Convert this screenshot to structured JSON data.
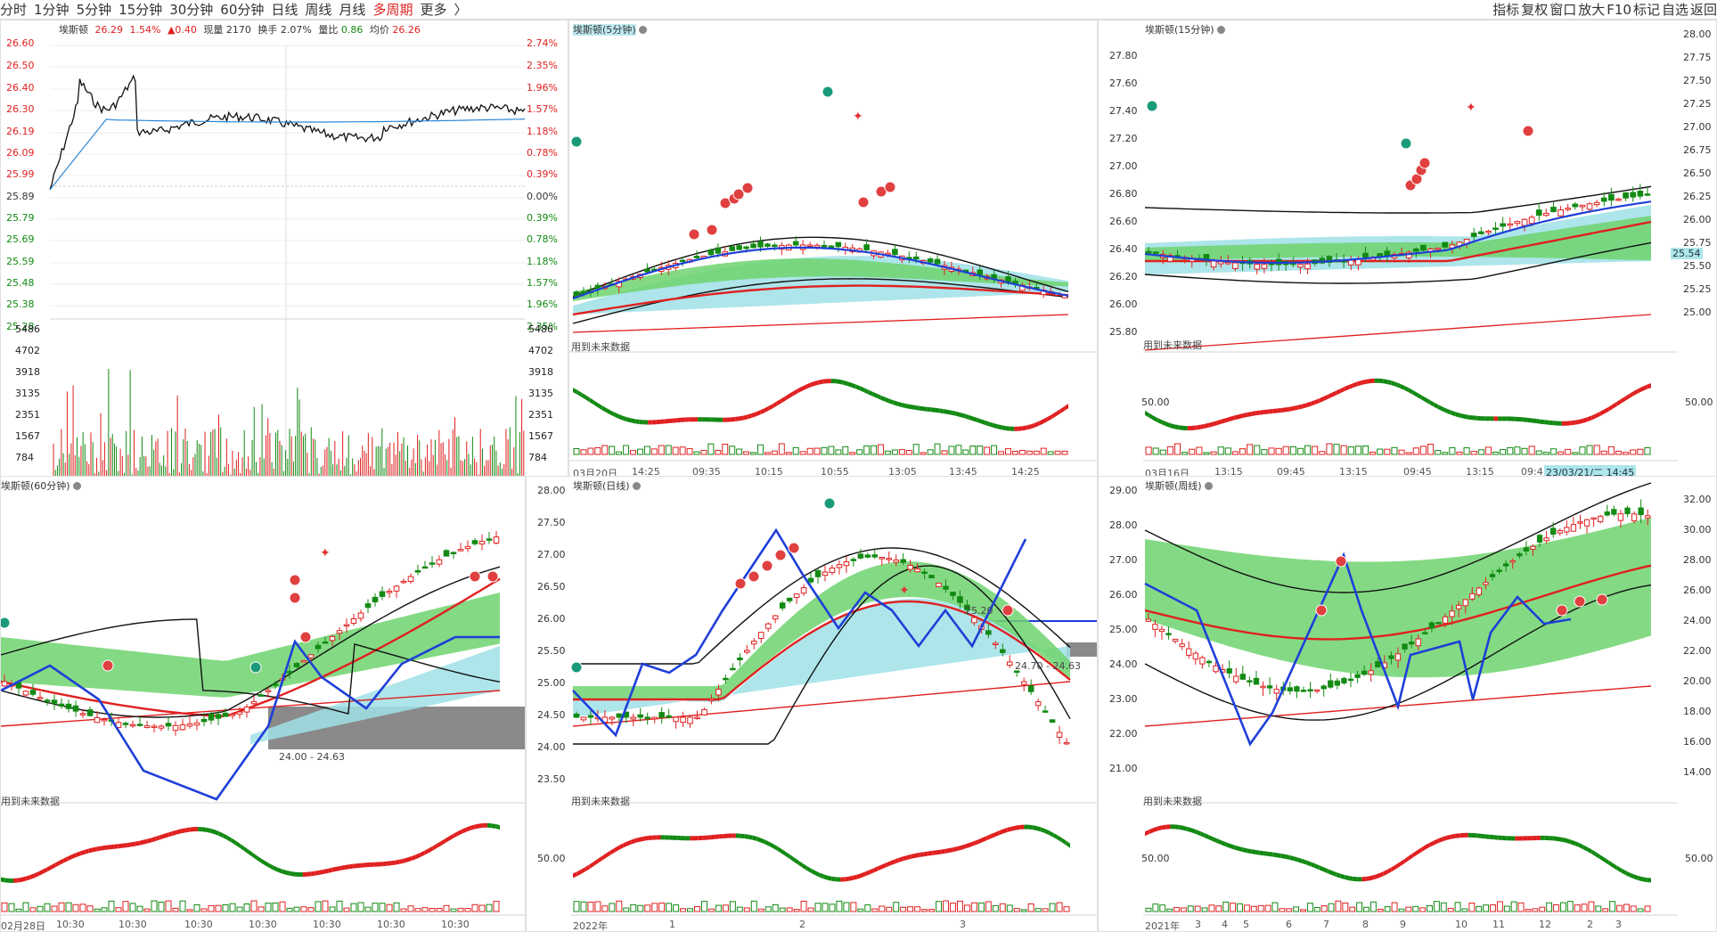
{
  "topbar": {
    "tabs": [
      "分时",
      "1分钟",
      "5分钟",
      "15分钟",
      "30分钟",
      "60分钟",
      "日线",
      "周线",
      "月线",
      "多周期",
      "更多"
    ],
    "active_tab": "多周期",
    "more_arrow": "〉",
    "tools": [
      "指标",
      "复权",
      "窗口",
      "放大",
      "F10",
      "标记",
      "自选",
      "返回"
    ]
  },
  "intraday": {
    "name": "埃斯顿",
    "price": "26.29",
    "change_pct": "1.54%",
    "change": "▲0.40",
    "volume_label": "现量",
    "volume": "2170",
    "turnover_label": "换手",
    "turnover": "2.07%",
    "ratio_label": "量比",
    "ratio": "0.86",
    "avg_label": "均价",
    "avg": "26.26",
    "price_ticks": [
      "26.60",
      "26.50",
      "26.40",
      "26.30",
      "26.19",
      "26.09",
      "25.99",
      "25.89",
      "25.79",
      "25.69",
      "25.59",
      "25.48",
      "25.38",
      "25.28"
    ],
    "pct_ticks": [
      "2.74%",
      "2.35%",
      "1.96%",
      "1.57%",
      "1.18%",
      "0.78%",
      "0.39%",
      "0.00%",
      "0.39%",
      "0.78%",
      "1.18%",
      "1.57%",
      "1.96%",
      "2.35%"
    ],
    "vol_ticks": [
      "5486",
      "4702",
      "3918",
      "3135",
      "2351",
      "1567",
      "784"
    ],
    "x_labels": []
  },
  "panels": {
    "m5": {
      "title": "埃斯顿(5分钟)",
      "note": "用到未来数据",
      "x_labels": [
        "03月20日",
        "14:25",
        "09:35",
        "10:15",
        "10:55",
        "13:05",
        "13:45",
        "14:25"
      ]
    },
    "m15": {
      "title": "埃斯顿(15分钟)",
      "note": "用到未来数据",
      "price_ticks": [
        "27.80",
        "27.60",
        "27.40",
        "27.20",
        "27.00",
        "26.80",
        "26.60",
        "26.40",
        "26.20",
        "26.00",
        "25.80"
      ],
      "right_ticks": [
        "28.00",
        "27.75",
        "27.50",
        "27.25",
        "27.00",
        "26.75",
        "26.50",
        "26.25",
        "26.00",
        "25.75",
        "25.50",
        "25.25",
        "25.00"
      ],
      "price_badge": "25.54",
      "osc_tick": "50.00",
      "right_osc_tick": "50.00",
      "x_labels": [
        "03月16日",
        "13:15",
        "09:45",
        "13:15",
        "09:45",
        "13:15",
        "09:4"
      ],
      "time_badge": "23/03/21/二 14:45"
    },
    "m60": {
      "title": "埃斯顿(60分钟)",
      "note": "用到未来数据",
      "range_label": "24.00 - 24.63",
      "x_labels": [
        "02月28日",
        "10:30",
        "10:30",
        "10:30",
        "10:30",
        "10:30",
        "10:30",
        "10:30"
      ]
    },
    "day": {
      "title": "埃斯顿(日线)",
      "note": "用到未来数据",
      "price_ticks": [
        "28.00",
        "27.50",
        "27.00",
        "26.50",
        "26.00",
        "25.50",
        "25.00",
        "24.50",
        "24.00",
        "23.50"
      ],
      "osc_tick": "50.00",
      "level_label": "25.20",
      "range_label": "24.70 - 24.63",
      "x_labels": [
        "2022年",
        "1",
        "2",
        "3"
      ]
    },
    "week": {
      "title": "埃斯顿(周线)",
      "note": "用到未来数据",
      "price_ticks": [
        "29.00",
        "28.00",
        "27.00",
        "26.00",
        "25.00",
        "24.00",
        "23.00",
        "22.00",
        "21.00"
      ],
      "right_ticks": [
        "32.00",
        "30.00",
        "28.00",
        "26.00",
        "24.00",
        "22.00",
        "20.00",
        "18.00",
        "16.00",
        "14.00"
      ],
      "osc_tick": "50.00",
      "right_osc_tick": "50.00",
      "x_labels": [
        "2021年",
        "3",
        "4",
        "5",
        "6",
        "7",
        "8",
        "9",
        "10",
        "11",
        "12",
        "2",
        "3"
      ]
    }
  },
  "colors": {
    "up": "#e02020",
    "down": "#138a13",
    "ma_blue": "#1f3fd8",
    "band_cyan": "#9fe0e6",
    "band_green": "#6fd36f",
    "price_line": "#111111",
    "avg_line": "#2a87d8"
  }
}
